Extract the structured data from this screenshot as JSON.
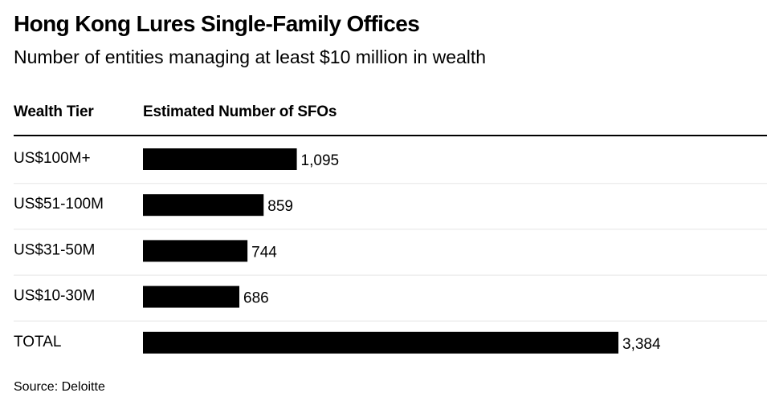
{
  "chart_data": {
    "type": "bar",
    "orientation": "horizontal",
    "title": "Hong Kong Lures Single-Family Offices",
    "subtitle": "Number of entities managing at least $10 million in wealth",
    "column_headers": {
      "category": "Wealth Tier",
      "value": "Estimated Number of SFOs"
    },
    "categories": [
      "US$100M+",
      "US$51-100M",
      "US$31-50M",
      "US$10-30M",
      "TOTAL"
    ],
    "values": [
      1095,
      859,
      744,
      686,
      3384
    ],
    "value_labels": [
      "1,095",
      "859",
      "744",
      "686",
      "3,384"
    ],
    "xlim": [
      0,
      3384
    ],
    "grid": false,
    "legend": "none",
    "bar_color": "#000000",
    "row_divider_color": "#e5e5e5",
    "header_rule_color": "#000000",
    "source": "Source: Deloitte"
  }
}
